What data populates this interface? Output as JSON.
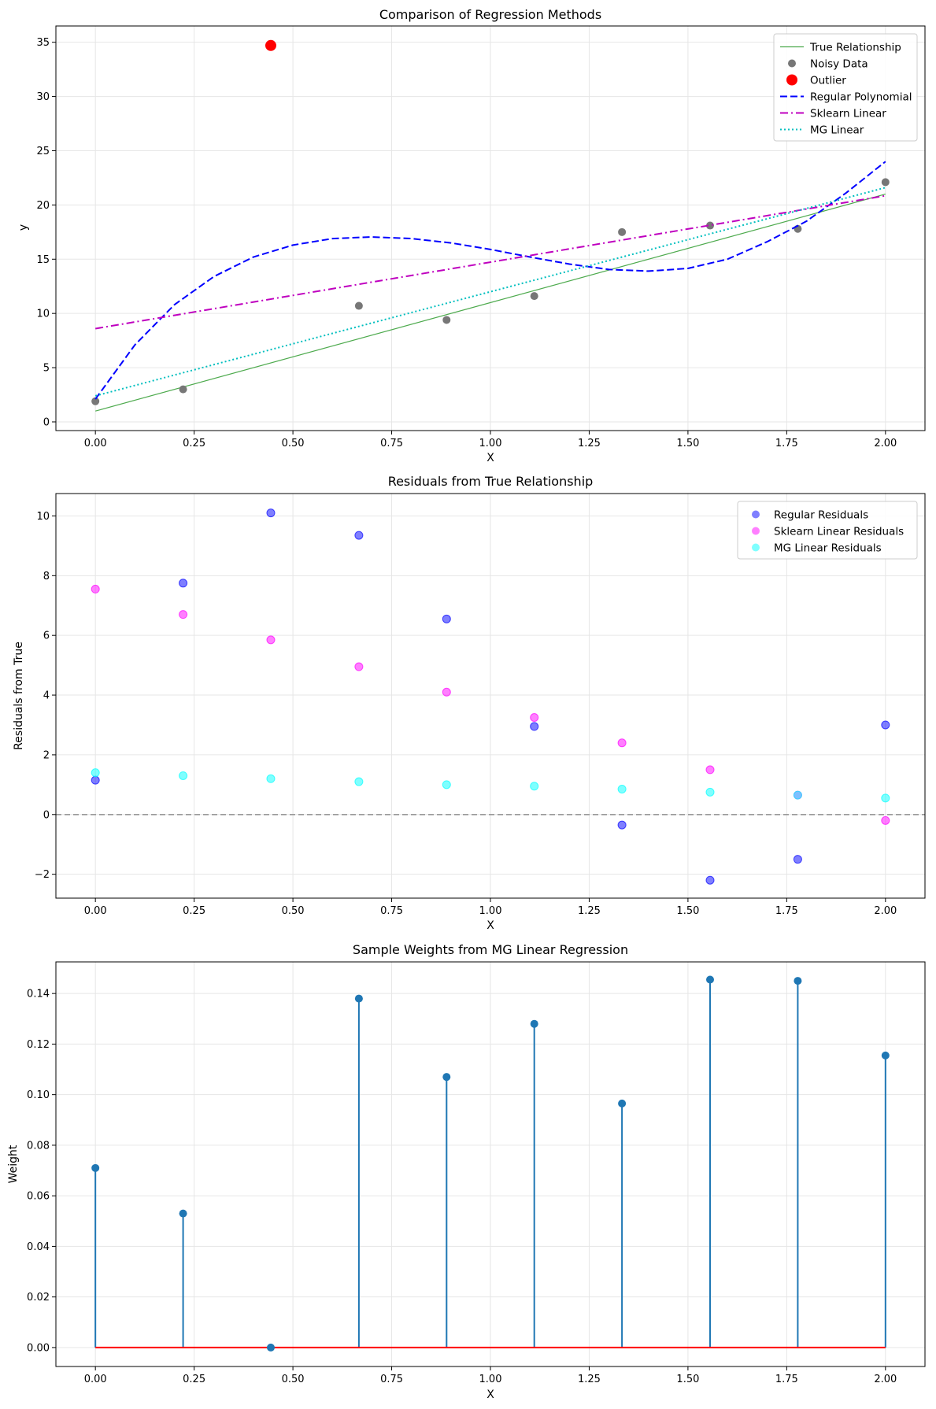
{
  "chart_data": [
    {
      "type": "line",
      "title": "Comparison of Regression Methods",
      "xlabel": "X",
      "ylabel": "y",
      "xlim": [
        -0.1,
        2.1
      ],
      "ylim": [
        -0.8,
        36.5
      ],
      "xticks": [
        0.0,
        0.25,
        0.5,
        0.75,
        1.0,
        1.25,
        1.5,
        1.75,
        2.0
      ],
      "xtick_labels": [
        "0.00",
        "0.25",
        "0.50",
        "0.75",
        "1.00",
        "1.25",
        "1.50",
        "1.75",
        "2.00"
      ],
      "yticks": [
        0,
        5,
        10,
        15,
        20,
        25,
        30,
        35
      ],
      "ytick_labels": [
        "0",
        "5",
        "10",
        "15",
        "20",
        "25",
        "30",
        "35"
      ],
      "grid": true,
      "legend_position": "top-right",
      "series": [
        {
          "name": "True Relationship",
          "kind": "line",
          "color": "#4daa4d",
          "dash": "solid",
          "x": [
            0,
            2
          ],
          "y": [
            1.0,
            21.0
          ]
        },
        {
          "name": "Noisy Data",
          "kind": "scatter",
          "color": "#777777",
          "x": [
            0.0,
            0.222,
            0.667,
            0.889,
            1.111,
            1.333,
            1.556,
            1.778,
            2.0
          ],
          "y": [
            1.9,
            3.0,
            10.7,
            9.4,
            11.6,
            17.5,
            18.1,
            17.8,
            22.1
          ]
        },
        {
          "name": "Outlier",
          "kind": "scatter",
          "color": "#ff0000",
          "x": [
            0.444
          ],
          "y": [
            34.7
          ]
        },
        {
          "name": "Regular Polynomial",
          "kind": "line",
          "color": "#0000ff",
          "dash": "dashed",
          "x": [
            0.0,
            0.1,
            0.2,
            0.3,
            0.4,
            0.5,
            0.6,
            0.7,
            0.8,
            0.9,
            1.0,
            1.1,
            1.2,
            1.3,
            1.4,
            1.5,
            1.6,
            1.7,
            1.8,
            1.9,
            2.0
          ],
          "y": [
            2.1,
            7.1,
            10.8,
            13.4,
            15.2,
            16.3,
            16.9,
            17.05,
            16.9,
            16.5,
            15.9,
            15.2,
            14.55,
            14.05,
            13.9,
            14.15,
            15.0,
            16.6,
            18.5,
            21.1,
            24.0
          ]
        },
        {
          "name": "Sklearn Linear",
          "kind": "line",
          "color": "#bf00bf",
          "dash": "dashdot",
          "x": [
            0,
            2
          ],
          "y": [
            8.6,
            20.85
          ]
        },
        {
          "name": "MG Linear",
          "kind": "line",
          "color": "#00bfbf",
          "dash": "dotted",
          "x": [
            0,
            2
          ],
          "y": [
            2.4,
            21.6
          ]
        }
      ]
    },
    {
      "type": "scatter",
      "title": "Residuals from True Relationship",
      "xlabel": "X",
      "ylabel": "Residuals from True",
      "xlim": [
        -0.1,
        2.1
      ],
      "ylim": [
        -2.8,
        10.75
      ],
      "xticks": [
        0.0,
        0.25,
        0.5,
        0.75,
        1.0,
        1.25,
        1.5,
        1.75,
        2.0
      ],
      "xtick_labels": [
        "0.00",
        "0.25",
        "0.50",
        "0.75",
        "1.00",
        "1.25",
        "1.50",
        "1.75",
        "2.00"
      ],
      "yticks": [
        -2,
        0,
        2,
        4,
        6,
        8,
        10
      ],
      "ytick_labels": [
        "−2",
        "0",
        "2",
        "4",
        "6",
        "8",
        "10"
      ],
      "grid": true,
      "zero_line": true,
      "legend_position": "top-right",
      "series": [
        {
          "name": "Regular Residuals",
          "kind": "scatter",
          "color": "#0000ff",
          "x": [
            0.0,
            0.222,
            0.444,
            0.667,
            0.889,
            1.111,
            1.333,
            1.556,
            1.778,
            2.0
          ],
          "y": [
            1.15,
            7.75,
            10.1,
            9.35,
            6.55,
            2.95,
            -0.35,
            -2.2,
            -1.5,
            3.0
          ]
        },
        {
          "name": "Sklearn Linear Residuals",
          "kind": "scatter",
          "color": "#ff00ff",
          "x": [
            0.0,
            0.222,
            0.444,
            0.667,
            0.889,
            1.111,
            1.333,
            1.556,
            1.778,
            2.0
          ],
          "y": [
            7.55,
            6.7,
            5.85,
            4.95,
            4.1,
            3.25,
            2.4,
            1.5,
            0.65,
            -0.2
          ]
        },
        {
          "name": "MG Linear Residuals",
          "kind": "scatter",
          "color": "#00ffff",
          "x": [
            0.0,
            0.222,
            0.444,
            0.667,
            0.889,
            1.111,
            1.333,
            1.556,
            1.778,
            2.0
          ],
          "y": [
            1.4,
            1.3,
            1.2,
            1.1,
            1.0,
            0.95,
            0.85,
            0.75,
            0.65,
            0.55
          ]
        }
      ]
    },
    {
      "type": "stem",
      "title": "Sample Weights from MG Linear Regression",
      "xlabel": "X",
      "ylabel": "Weight",
      "xlim": [
        -0.1,
        2.1
      ],
      "ylim": [
        -0.0075,
        0.1525
      ],
      "xticks": [
        0.0,
        0.25,
        0.5,
        0.75,
        1.0,
        1.25,
        1.5,
        1.75,
        2.0
      ],
      "xtick_labels": [
        "0.00",
        "0.25",
        "0.50",
        "0.75",
        "1.00",
        "1.25",
        "1.50",
        "1.75",
        "2.00"
      ],
      "yticks": [
        0.0,
        0.02,
        0.04,
        0.06,
        0.08,
        0.1,
        0.12,
        0.14
      ],
      "ytick_labels": [
        "0.00",
        "0.02",
        "0.04",
        "0.06",
        "0.08",
        "0.10",
        "0.12",
        "0.14"
      ],
      "grid": true,
      "baseline_color": "#ff0000",
      "stem_color": "#1f77b4",
      "series": [
        {
          "name": "Weight",
          "x": [
            0.0,
            0.222,
            0.444,
            0.667,
            0.889,
            1.111,
            1.333,
            1.556,
            1.778,
            2.0
          ],
          "y": [
            0.071,
            0.053,
            0.0,
            0.138,
            0.107,
            0.128,
            0.0965,
            0.1455,
            0.145,
            0.1155
          ]
        }
      ]
    }
  ]
}
